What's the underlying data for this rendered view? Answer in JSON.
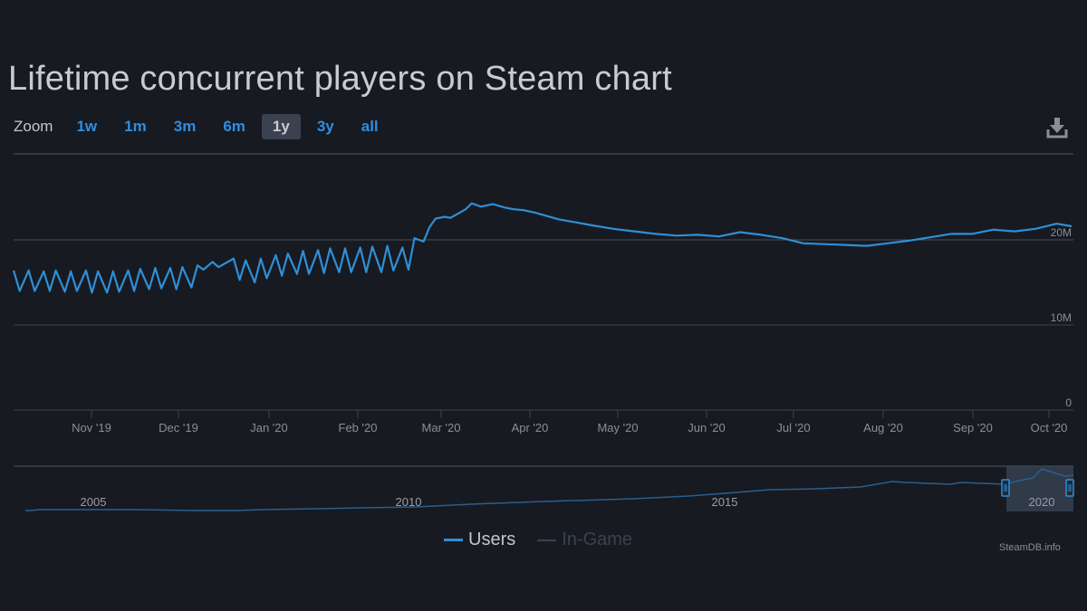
{
  "title": "Lifetime concurrent players on Steam chart",
  "zoom": {
    "label": "Zoom",
    "buttons": [
      {
        "label": "1w",
        "active": false
      },
      {
        "label": "1m",
        "active": false
      },
      {
        "label": "3m",
        "active": false
      },
      {
        "label": "6m",
        "active": false
      },
      {
        "label": "1y",
        "active": true
      },
      {
        "label": "3y",
        "active": false
      },
      {
        "label": "all",
        "active": false
      }
    ]
  },
  "download_icon": "download-icon",
  "colors": {
    "background": "#171a21",
    "series_users": "#2f8fd6",
    "series_in_game": "#3a4150",
    "active_zoom_bg": "#3a4150",
    "zoom_link": "#2f8de4",
    "gridline": "#3d424b"
  },
  "legend": {
    "items": [
      {
        "label": "Users",
        "color": "#2f8fd6",
        "enabled": true
      },
      {
        "label": "In-Game",
        "color": "#3a4150",
        "enabled": false
      }
    ]
  },
  "credits": "SteamDB.info",
  "navigator": {
    "year_labels": [
      "2005",
      "2010",
      "2015",
      "2020"
    ]
  },
  "chart_data": {
    "type": "line",
    "title": "Lifetime concurrent players on Steam chart",
    "xlabel": "",
    "ylabel": "",
    "ylim": [
      0,
      30000000
    ],
    "y_ticks": [
      "0",
      "10M",
      "20M"
    ],
    "y_tick_values": [
      0,
      10000000,
      20000000
    ],
    "x_ticks": [
      "Nov '19",
      "Dec '19",
      "Jan '20",
      "Feb '20",
      "Mar '20",
      "Apr '20",
      "May '20",
      "Jun '20",
      "Jul '20",
      "Aug '20",
      "Sep '20",
      "Oct '20"
    ],
    "grid": true,
    "legend_position": "bottom",
    "series": [
      {
        "name": "Users",
        "x": [
          "2019-10-22",
          "2019-10-24",
          "2019-10-27",
          "2019-10-29",
          "2019-11-01",
          "2019-11-03",
          "2019-11-05",
          "2019-11-08",
          "2019-11-10",
          "2019-11-12",
          "2019-11-15",
          "2019-11-17",
          "2019-11-19",
          "2019-11-22",
          "2019-11-24",
          "2019-11-26",
          "2019-11-29",
          "2019-12-01",
          "2019-12-03",
          "2019-12-06",
          "2019-12-08",
          "2019-12-10",
          "2019-12-13",
          "2019-12-15",
          "2019-12-17",
          "2019-12-20",
          "2019-12-22",
          "2019-12-24",
          "2019-12-27",
          "2019-12-29",
          "2019-12-31",
          "2020-01-03",
          "2020-01-05",
          "2020-01-07",
          "2020-01-10",
          "2020-01-12",
          "2020-01-14",
          "2020-01-17",
          "2020-01-19",
          "2020-01-21",
          "2020-01-24",
          "2020-01-26",
          "2020-01-28",
          "2020-01-31",
          "2020-02-02",
          "2020-02-04",
          "2020-02-07",
          "2020-02-09",
          "2020-02-11",
          "2020-02-14",
          "2020-02-16",
          "2020-02-18",
          "2020-02-21",
          "2020-02-23",
          "2020-02-25",
          "2020-02-28",
          "2020-03-01",
          "2020-03-03",
          "2020-03-06",
          "2020-03-08",
          "2020-03-10",
          "2020-03-13",
          "2020-03-15",
          "2020-03-17",
          "2020-03-20",
          "2020-03-22",
          "2020-03-25",
          "2020-03-29",
          "2020-04-02",
          "2020-04-05",
          "2020-04-08",
          "2020-04-12",
          "2020-04-16",
          "2020-04-20",
          "2020-04-25",
          "2020-05-01",
          "2020-05-08",
          "2020-05-15",
          "2020-05-22",
          "2020-05-29",
          "2020-06-05",
          "2020-06-12",
          "2020-06-19",
          "2020-06-26",
          "2020-07-03",
          "2020-07-10",
          "2020-07-17",
          "2020-07-24",
          "2020-07-31",
          "2020-08-07",
          "2020-08-14",
          "2020-08-21",
          "2020-08-28",
          "2020-09-04",
          "2020-09-11",
          "2020-09-18",
          "2020-09-25",
          "2020-10-02",
          "2020-10-07"
        ],
        "values": [
          16400000,
          14000000,
          16400000,
          14000000,
          16300000,
          14000000,
          16400000,
          13900000,
          16300000,
          14000000,
          16400000,
          13800000,
          16300000,
          13800000,
          16300000,
          13900000,
          16400000,
          14000000,
          16600000,
          14200000,
          16700000,
          14300000,
          16700000,
          14200000,
          16800000,
          14400000,
          17000000,
          16500000,
          17400000,
          16800000,
          17200000,
          17800000,
          15300000,
          17600000,
          15000000,
          17800000,
          15500000,
          18200000,
          15800000,
          18400000,
          16000000,
          18700000,
          16000000,
          18800000,
          16100000,
          19000000,
          16200000,
          19000000,
          16200000,
          19100000,
          16200000,
          19200000,
          16200000,
          19300000,
          16400000,
          19100000,
          16500000,
          20200000,
          19800000,
          21500000,
          22500000,
          22700000,
          22600000,
          23000000,
          23600000,
          24300000,
          23900000,
          24200000,
          23800000,
          23600000,
          23500000,
          23200000,
          22800000,
          22400000,
          22100000,
          21700000,
          21300000,
          21000000,
          20700000,
          20500000,
          20600000,
          20400000,
          20900000,
          20600000,
          20200000,
          19600000,
          19500000,
          19400000,
          19300000,
          19600000,
          19900000,
          20300000,
          20700000,
          20700000,
          21200000,
          21000000,
          21300000,
          21900000,
          21600000
        ]
      },
      {
        "name": "In-Game",
        "hidden": true,
        "values": []
      }
    ]
  }
}
